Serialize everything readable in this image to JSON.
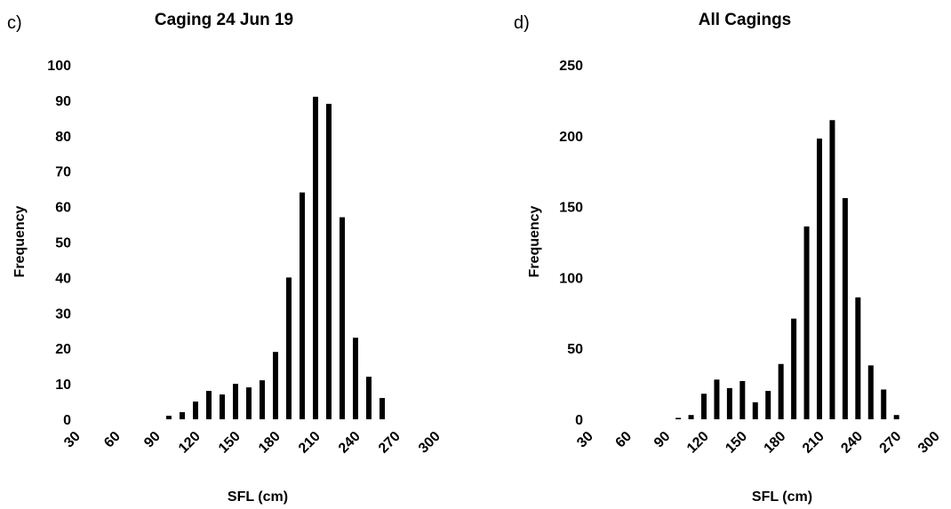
{
  "chart_data": [
    {
      "type": "bar",
      "panel_label": "c)",
      "title": "Caging 24 Jun 19",
      "xlabel": "SFL (cm)",
      "ylabel": "Frequency",
      "ylim": [
        0,
        100
      ],
      "yticks": [
        "0",
        "10",
        "20",
        "30",
        "40",
        "50",
        "60",
        "70",
        "80",
        "90",
        "100"
      ],
      "xticks": [
        "30",
        "60",
        "90",
        "120",
        "150",
        "180",
        "210",
        "240",
        "270",
        "300"
      ],
      "xlim": [
        30,
        300
      ],
      "grid": false,
      "x": [
        100,
        110,
        120,
        130,
        140,
        150,
        160,
        170,
        180,
        190,
        200,
        210,
        220,
        230,
        240,
        250,
        260
      ],
      "values": [
        1,
        2,
        5,
        8,
        7,
        10,
        9,
        11,
        19,
        40,
        64,
        91,
        89,
        57,
        23,
        12,
        6
      ]
    },
    {
      "type": "bar",
      "panel_label": "d)",
      "title": "All Cagings",
      "xlabel": "SFL (cm)",
      "ylabel": "Frequency",
      "ylim": [
        0,
        250
      ],
      "yticks": [
        "0",
        "50",
        "100",
        "150",
        "200",
        "250"
      ],
      "xticks": [
        "30",
        "60",
        "90",
        "120",
        "150",
        "180",
        "210",
        "240",
        "270",
        "300"
      ],
      "xlim": [
        30,
        300
      ],
      "grid": false,
      "x": [
        100,
        110,
        120,
        130,
        140,
        150,
        160,
        170,
        180,
        190,
        200,
        210,
        220,
        230,
        240,
        250,
        260,
        270
      ],
      "values": [
        1,
        3,
        18,
        28,
        22,
        27,
        12,
        20,
        39,
        71,
        136,
        198,
        211,
        156,
        86,
        38,
        21,
        3
      ]
    }
  ]
}
